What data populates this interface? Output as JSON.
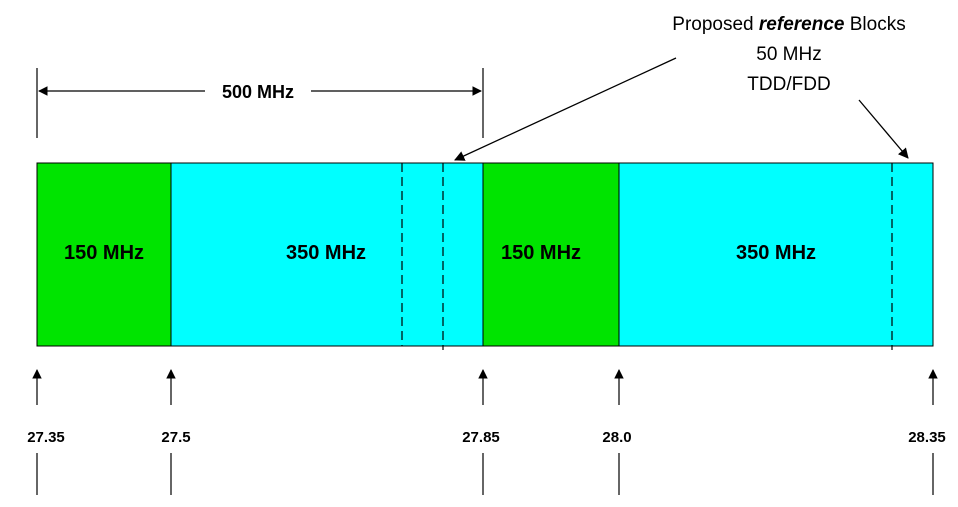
{
  "span": {
    "label": "500 MHz"
  },
  "callout": {
    "line1_prefix": "Proposed ",
    "line1_emph": "reference",
    "line1_suffix": " Blocks",
    "line2": "50 MHz",
    "line3": "TDD/FDD"
  },
  "blocks": [
    {
      "label": "150 MHz",
      "color": "#00e400"
    },
    {
      "label": "350 MHz",
      "color": "#00ffff"
    },
    {
      "label": "150 MHz",
      "color": "#00e400"
    },
    {
      "label": "350 MHz",
      "color": "#00ffff"
    }
  ],
  "frequencies": [
    "27.35",
    "27.5",
    "27.85",
    "28.0",
    "28.35"
  ]
}
